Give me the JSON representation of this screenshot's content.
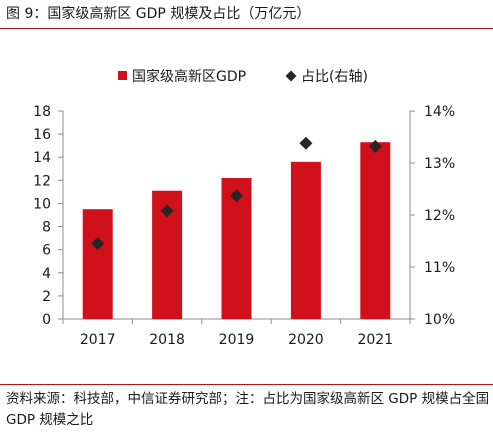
{
  "figure": {
    "title": "图 9：国家级高新区 GDP 规模及占比（万亿元）",
    "source": "资料来源：科技部，中信证券研究部；注：占比为国家级高新区 GDP 规模占全国 GDP 规模之比"
  },
  "colors": {
    "bar": "#d0101b",
    "marker": "#262626",
    "rule": "#b1121b",
    "axis": "#8c8c8c"
  },
  "chart_data": {
    "type": "bar",
    "title": "",
    "categories": [
      "2017",
      "2018",
      "2019",
      "2020",
      "2021"
    ],
    "series": [
      {
        "name": "国家级高新区GDP",
        "kind": "bar",
        "axis": "left",
        "values": [
          9.5,
          11.1,
          12.2,
          13.6,
          15.3
        ]
      },
      {
        "name": "占比(右轴)",
        "kind": "marker-diamond",
        "axis": "right",
        "values": [
          11.45,
          12.08,
          12.37,
          13.38,
          13.32
        ]
      }
    ],
    "y_left": {
      "min": 0,
      "max": 18,
      "step": 2,
      "ticks": [
        "0",
        "2",
        "4",
        "6",
        "8",
        "10",
        "12",
        "14",
        "16",
        "18"
      ]
    },
    "y_right": {
      "min": 10,
      "max": 14,
      "step": 1,
      "unit": "%",
      "ticks": [
        "10%",
        "11%",
        "12%",
        "13%",
        "14%"
      ]
    },
    "xlabel": "",
    "ylabel": "",
    "legend_position": "top-center",
    "grid": false
  }
}
